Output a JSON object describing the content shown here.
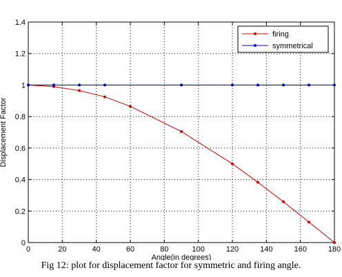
{
  "chart_data": {
    "type": "line",
    "xlabel": "Angle(in degrees)",
    "ylabel": "Displacement Factor",
    "xlim": [
      0,
      180
    ],
    "ylim": [
      0,
      1.4
    ],
    "xticks": [
      0,
      20,
      40,
      60,
      80,
      100,
      120,
      140,
      160,
      180
    ],
    "yticks": [
      0,
      0.2,
      0.4,
      0.6,
      0.8,
      1,
      1.2,
      1.4
    ],
    "grid": true,
    "legend_position": "top-right",
    "series": [
      {
        "name": "firing",
        "color": "#cc0000",
        "x": [
          0,
          15,
          30,
          45,
          60,
          90,
          120,
          135,
          150,
          165,
          180
        ],
        "y": [
          1.0,
          0.99,
          0.965,
          0.925,
          0.865,
          0.705,
          0.5,
          0.383,
          0.259,
          0.13,
          0.0
        ]
      },
      {
        "name": "symmetrical",
        "color": "#0000cc",
        "x": [
          0,
          15,
          30,
          45,
          90,
          120,
          135,
          150,
          165,
          180
        ],
        "y": [
          1,
          1,
          1,
          1,
          1,
          1,
          1,
          1,
          1,
          1
        ]
      }
    ]
  },
  "caption": "Fig 12: plot for displacement factor for symmetric and firing angle."
}
